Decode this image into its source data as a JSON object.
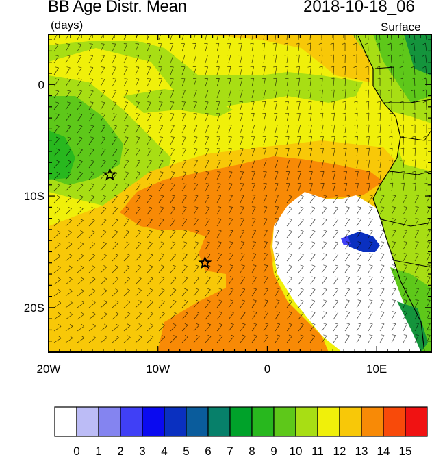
{
  "title": "BB Age Distr. Mean",
  "units": "(days)",
  "time": "2018-10-18_06",
  "level": "Surface",
  "map": {
    "lon_range": [
      -20,
      15
    ],
    "lat_range": [
      -24,
      4.5
    ],
    "lon_ticks": [
      {
        "value": -20,
        "label": "20W"
      },
      {
        "value": -10,
        "label": "10W"
      },
      {
        "value": 0,
        "label": "0"
      },
      {
        "value": 10,
        "label": "10E"
      }
    ],
    "lat_ticks": [
      {
        "value": 0,
        "label": "0"
      },
      {
        "value": -10,
        "label": "10S"
      },
      {
        "value": -20,
        "label": "20S"
      }
    ],
    "stars": [
      {
        "lon": -14.4,
        "lat": -8.1
      },
      {
        "lon": -5.7,
        "lat": -16.0
      }
    ]
  },
  "colorbar": {
    "levels": [
      "0",
      "1",
      "2",
      "3",
      "4",
      "5",
      "6",
      "7",
      "8",
      "9",
      "10",
      "11",
      "12",
      "13",
      "14",
      "15"
    ],
    "colors": [
      "#ffffff",
      "#bcbcf6",
      "#8484f0",
      "#4040f6",
      "#0a0af0",
      "#0a30c0",
      "#0a5c9c",
      "#07806a",
      "#00a22a",
      "#28b81e",
      "#5ec81a",
      "#a8de14",
      "#f0f00a",
      "#f8c808",
      "#f88a06",
      "#f84a0a",
      "#f01212"
    ]
  },
  "colors": {
    "land_green": "#14943c",
    "ocean_yellow": "#f0f00a",
    "aged_orange": "#f88a06",
    "clean_white": "#ffffff"
  }
}
